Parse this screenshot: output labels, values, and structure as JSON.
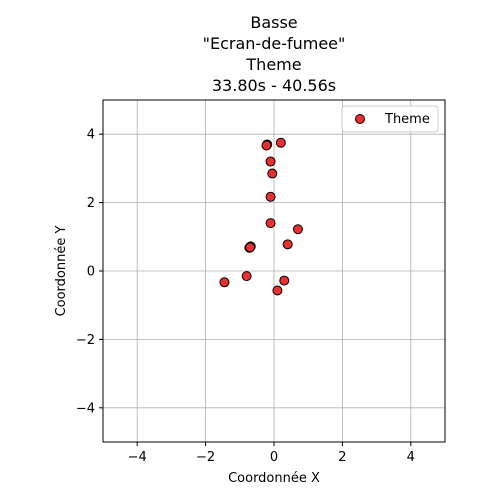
{
  "chart_data": {
    "type": "scatter",
    "title_lines": [
      "Basse",
      "\"Ecran-de-fumee\"",
      "Theme",
      "33.80s - 40.56s"
    ],
    "xlabel": "Coordonnée X",
    "ylabel": "Coordonnée Y",
    "xlim": [
      -5,
      5
    ],
    "ylim": [
      -5,
      5
    ],
    "xticks": [
      -4,
      -2,
      0,
      2,
      4
    ],
    "yticks": [
      -4,
      -2,
      0,
      2,
      4
    ],
    "xtick_labels": [
      "−4",
      "−2",
      "0",
      "2",
      "4"
    ],
    "ytick_labels": [
      "−4",
      "−2",
      "0",
      "2",
      "4"
    ],
    "grid": true,
    "legend_position": "top-right",
    "series": [
      {
        "name": "Theme",
        "color": "#e83030",
        "edge_color": "#000000",
        "points": [
          [
            -0.7,
            0.7
          ],
          [
            -0.72,
            0.68
          ],
          [
            -0.68,
            0.72
          ],
          [
            -0.7,
            0.69
          ],
          [
            -0.2,
            3.7
          ],
          [
            -0.22,
            3.67
          ],
          [
            0.2,
            3.75
          ],
          [
            -0.1,
            3.2
          ],
          [
            -0.05,
            2.85
          ],
          [
            -0.1,
            2.17
          ],
          [
            -0.1,
            1.4
          ],
          [
            0.7,
            1.22
          ],
          [
            0.4,
            0.78
          ],
          [
            -0.8,
            -0.15
          ],
          [
            -1.45,
            -0.33
          ],
          [
            0.3,
            -0.28
          ],
          [
            0.1,
            -0.57
          ]
        ]
      }
    ]
  }
}
